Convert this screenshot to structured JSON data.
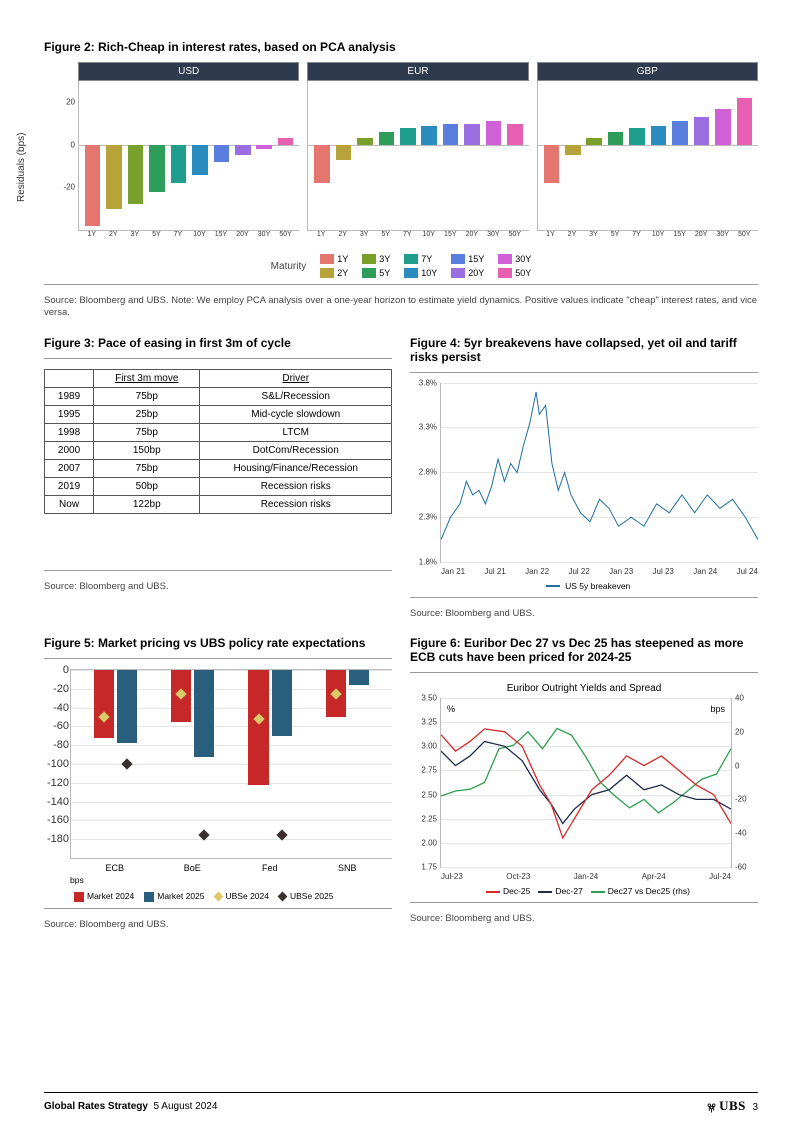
{
  "footer": {
    "doc_title": "Global Rates Strategy",
    "date": "5 August 2024",
    "page": "3",
    "brand": "UBS"
  },
  "maturity_colors": {
    "1Y": "#e5766f",
    "2Y": "#b8a23a",
    "3Y": "#7aa02c",
    "5Y": "#2e9d5a",
    "7Y": "#1f9e8e",
    "10Y": "#2a8bbf",
    "15Y": "#5a7ee0",
    "20Y": "#9a6ee0",
    "30Y": "#d060d6",
    "50Y": "#e65fb0"
  },
  "fig2": {
    "title": "Figure 2: Rich-Cheap in interest rates, based on PCA analysis",
    "ylabel": "Residuals (bps)",
    "ylim": [
      -40,
      30
    ],
    "yticks": [
      -20,
      0,
      20
    ],
    "categories": [
      "1Y",
      "2Y",
      "3Y",
      "5Y",
      "7Y",
      "10Y",
      "15Y",
      "20Y",
      "30Y",
      "50Y"
    ],
    "panels": [
      {
        "name": "USD",
        "values": [
          -38,
          -30,
          -28,
          -22,
          -18,
          -14,
          -8,
          -5,
          -2,
          3
        ]
      },
      {
        "name": "EUR",
        "values": [
          -18,
          -7,
          3,
          6,
          8,
          9,
          10,
          10,
          11,
          10
        ]
      },
      {
        "name": "GBP",
        "values": [
          -18,
          -5,
          3,
          6,
          8,
          9,
          11,
          13,
          17,
          22
        ]
      }
    ],
    "legend_label": "Maturity",
    "source": "Source: Bloomberg and UBS. Note: We employ PCA analysis over a one-year horizon to estimate yield dynamics. Positive values indicate \"cheap\" interest rates, and vice versa."
  },
  "fig3": {
    "title": "Figure 3: Pace of easing in first 3m of cycle",
    "headers": [
      "",
      "First 3m move",
      "Driver"
    ],
    "rows": [
      [
        "1989",
        "75bp",
        "S&L/Recession"
      ],
      [
        "1995",
        "25bp",
        "Mid-cycle slowdown"
      ],
      [
        "1998",
        "75bp",
        "LTCM"
      ],
      [
        "2000",
        "150bp",
        "DotCom/Recession"
      ],
      [
        "2007",
        "75bp",
        "Housing/Finance/Recession"
      ],
      [
        "2019",
        "50bp",
        "Recession risks"
      ],
      [
        "Now",
        "122bp",
        "Recession risks"
      ]
    ],
    "source": "Source: Bloomberg and UBS."
  },
  "fig4": {
    "title": "Figure 4: 5yr breakevens have collapsed, yet oil and tariff risks persist",
    "ylim": [
      1.8,
      3.8
    ],
    "yticks": [
      "1.8%",
      "2.3%",
      "2.8%",
      "3.3%",
      "3.8%"
    ],
    "xticks": [
      "Jan 21",
      "Jul 21",
      "Jan 22",
      "Jul 22",
      "Jan 23",
      "Jul 23",
      "Jan 24",
      "Jul 24"
    ],
    "line_color": "#1f6f9e",
    "legend": "US 5y breakeven",
    "points": [
      [
        0,
        2.05
      ],
      [
        3,
        2.3
      ],
      [
        6,
        2.45
      ],
      [
        8,
        2.7
      ],
      [
        10,
        2.55
      ],
      [
        12,
        2.6
      ],
      [
        14,
        2.45
      ],
      [
        16,
        2.65
      ],
      [
        18,
        2.95
      ],
      [
        20,
        2.7
      ],
      [
        22,
        2.9
      ],
      [
        24,
        2.8
      ],
      [
        26,
        3.1
      ],
      [
        28,
        3.35
      ],
      [
        30,
        3.7
      ],
      [
        31,
        3.45
      ],
      [
        33,
        3.55
      ],
      [
        35,
        2.9
      ],
      [
        37,
        2.6
      ],
      [
        39,
        2.8
      ],
      [
        41,
        2.55
      ],
      [
        44,
        2.35
      ],
      [
        47,
        2.25
      ],
      [
        50,
        2.5
      ],
      [
        53,
        2.4
      ],
      [
        56,
        2.2
      ],
      [
        60,
        2.3
      ],
      [
        64,
        2.2
      ],
      [
        68,
        2.45
      ],
      [
        72,
        2.35
      ],
      [
        76,
        2.55
      ],
      [
        80,
        2.35
      ],
      [
        84,
        2.55
      ],
      [
        88,
        2.4
      ],
      [
        92,
        2.5
      ],
      [
        96,
        2.3
      ],
      [
        100,
        2.05
      ]
    ],
    "source": "Source: Bloomberg and UBS."
  },
  "fig5": {
    "title": "Figure 5: Market pricing vs UBS policy rate expectations",
    "ylim": [
      -200,
      0
    ],
    "yticks": [
      0,
      -20,
      -40,
      -60,
      -80,
      -100,
      -120,
      -140,
      -160,
      -180
    ],
    "ylabel": "bps",
    "categories": [
      "ECB",
      "BoE",
      "Fed",
      "SNB"
    ],
    "series": {
      "market2024": {
        "color": "#c62828",
        "values": [
          -72,
          -55,
          -122,
          -50
        ],
        "label": "Market 2024"
      },
      "market2025": {
        "color": "#2a5e7d",
        "values": [
          -78,
          -92,
          -70,
          -16
        ],
        "label": "Market 2025"
      },
      "ubse2024": {
        "color": "#d8c96a",
        "values": [
          -50,
          -25,
          -52,
          -25
        ],
        "label": "UBSe 2024",
        "shape": "diamond"
      },
      "ubse2025": {
        "color": "#3a2e2e",
        "values": [
          -100,
          -175,
          -175,
          null
        ],
        "label": "UBSe 2025",
        "shape": "diamond"
      }
    },
    "source": "Source: Bloomberg and UBS."
  },
  "fig6": {
    "title": "Figure 6: Euribor Dec 27 vs Dec 25 has steepened as more ECB cuts have been priced for 2024-25",
    "subtitle": "Euribor Outright Yields and Spread",
    "ylim_l": [
      1.75,
      3.5
    ],
    "yticks_l": [
      "1.75",
      "2.00",
      "2.25",
      "2.50",
      "2.75",
      "3.00",
      "3.25",
      "3.50"
    ],
    "ylim_r": [
      -60,
      40
    ],
    "yticks_r": [
      "-60",
      "-40",
      "-20",
      "0",
      "20",
      "40"
    ],
    "y_l_label": "%",
    "y_r_label": "bps",
    "xticks": [
      "Jul-23",
      "Oct-23",
      "Jan-24",
      "Apr-24",
      "Jul-24"
    ],
    "series": {
      "dec25": {
        "color": "#d62828",
        "label": "Dec-25",
        "pts": [
          [
            0,
            3.12
          ],
          [
            5,
            2.95
          ],
          [
            10,
            3.05
          ],
          [
            15,
            3.18
          ],
          [
            22,
            3.15
          ],
          [
            28,
            3.0
          ],
          [
            34,
            2.6
          ],
          [
            38,
            2.4
          ],
          [
            42,
            2.05
          ],
          [
            46,
            2.25
          ],
          [
            52,
            2.55
          ],
          [
            58,
            2.7
          ],
          [
            64,
            2.9
          ],
          [
            70,
            2.8
          ],
          [
            76,
            2.9
          ],
          [
            82,
            2.75
          ],
          [
            88,
            2.6
          ],
          [
            94,
            2.5
          ],
          [
            100,
            2.2
          ]
        ]
      },
      "dec27": {
        "color": "#1c2b4a",
        "label": "Dec-27",
        "pts": [
          [
            0,
            2.95
          ],
          [
            5,
            2.8
          ],
          [
            10,
            2.9
          ],
          [
            15,
            3.05
          ],
          [
            22,
            3.0
          ],
          [
            28,
            2.85
          ],
          [
            34,
            2.55
          ],
          [
            38,
            2.4
          ],
          [
            42,
            2.2
          ],
          [
            46,
            2.35
          ],
          [
            52,
            2.5
          ],
          [
            58,
            2.55
          ],
          [
            64,
            2.7
          ],
          [
            70,
            2.55
          ],
          [
            76,
            2.6
          ],
          [
            82,
            2.5
          ],
          [
            88,
            2.45
          ],
          [
            94,
            2.45
          ],
          [
            100,
            2.35
          ]
        ]
      },
      "spread": {
        "color": "#2e9e4f",
        "label": "Dec27 vs Dec25 (rhs)",
        "axis": "r",
        "pts": [
          [
            0,
            -18
          ],
          [
            5,
            -15
          ],
          [
            10,
            -14
          ],
          [
            15,
            -10
          ],
          [
            20,
            10
          ],
          [
            25,
            12
          ],
          [
            30,
            20
          ],
          [
            35,
            10
          ],
          [
            40,
            22
          ],
          [
            45,
            18
          ],
          [
            50,
            5
          ],
          [
            55,
            -10
          ],
          [
            60,
            -18
          ],
          [
            65,
            -25
          ],
          [
            70,
            -20
          ],
          [
            75,
            -28
          ],
          [
            80,
            -22
          ],
          [
            85,
            -15
          ],
          [
            90,
            -8
          ],
          [
            95,
            -5
          ],
          [
            100,
            10
          ]
        ]
      }
    },
    "source": "Source: Bloomberg and UBS."
  }
}
